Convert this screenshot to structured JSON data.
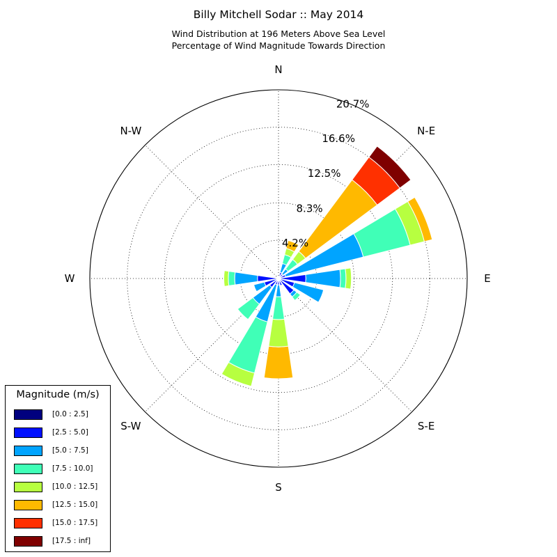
{
  "header": {
    "title": "Billy Mitchell Sodar :: May 2014",
    "subtitle_line1": "Wind Distribution at 196 Meters Above Sea Level",
    "subtitle_line2": "Percentage of Wind Magnitude Towards Direction"
  },
  "chart_data": {
    "type": "polar-bar",
    "title": "Billy Mitchell Sodar :: May 2014",
    "subtitle": [
      "Wind Distribution at 196 Meters Above Sea Level",
      "Percentage of Wind Magnitude Towards Direction"
    ],
    "radial_max": 20.7,
    "radial_ticks": [
      4.2,
      8.3,
      12.5,
      16.6,
      20.7
    ],
    "radial_tick_labels": [
      "4.2%",
      "8.3%",
      "12.5%",
      "16.6%",
      "20.7%"
    ],
    "direction_labels": [
      {
        "angle": 0,
        "label": "N"
      },
      {
        "angle": 45,
        "label": "N-E"
      },
      {
        "angle": 90,
        "label": "E"
      },
      {
        "angle": 135,
        "label": "S-E"
      },
      {
        "angle": 180,
        "label": "S"
      },
      {
        "angle": 225,
        "label": "S-W"
      },
      {
        "angle": 270,
        "label": "W"
      },
      {
        "angle": 315,
        "label": "N-W"
      }
    ],
    "bins": [
      "[0.0 : 2.5]",
      "[2.5 : 5.0]",
      "[5.0 : 7.5]",
      "[7.5 : 10.0]",
      "[10.0 : 12.5]",
      "[12.5 : 15.0]",
      "[15.0 : 17.5]",
      "[17.5 : inf]"
    ],
    "colors": [
      "#00007f",
      "#0010ff",
      "#00a4ff",
      "#40ffb7",
      "#b7ff40",
      "#ffb900",
      "#ff3000",
      "#7f0000"
    ],
    "directions": [
      22.5,
      45,
      67.5,
      90,
      112.5,
      135,
      157.5,
      180,
      202.5,
      225,
      247.5,
      270,
      292.5,
      315,
      337.5,
      360
    ],
    "stacked_cumulative_percent": [
      [
        0.1,
        0.7,
        1.7,
        2.7,
        3.4,
        4.3,
        4.3,
        4.3
      ],
      [
        0.1,
        0.6,
        1.3,
        2.6,
        3.7,
        13.5,
        16.6,
        18.1
      ],
      [
        0.1,
        0.8,
        9.6,
        14.9,
        16.5,
        17.4,
        17.4,
        17.4
      ],
      [
        0.1,
        3.0,
        6.8,
        7.4,
        8.0,
        8.0,
        8.0,
        8.0
      ],
      [
        0.1,
        1.8,
        5.1,
        5.1,
        5.1,
        5.1,
        5.1,
        5.1
      ],
      [
        0.1,
        2.1,
        2.5,
        3.0,
        3.0,
        3.0,
        3.0,
        3.0
      ],
      [
        0.1,
        0.8,
        0.8,
        0.8,
        0.8,
        0.8,
        0.8,
        0.8
      ],
      [
        0.1,
        0.7,
        2.0,
        4.5,
        7.5,
        11.0,
        11.0,
        11.0
      ],
      [
        0.1,
        0.7,
        4.9,
        10.7,
        12.2,
        12.2,
        12.2,
        12.2
      ],
      [
        0.1,
        1.2,
        3.5,
        5.6,
        5.6,
        5.6,
        5.6,
        5.6
      ],
      [
        0.1,
        1.6,
        2.8,
        2.8,
        2.8,
        2.8,
        2.8,
        2.8
      ],
      [
        0.1,
        2.3,
        4.8,
        5.5,
        6.0,
        6.0,
        6.0,
        6.0
      ],
      [
        0.1,
        0.1,
        0.1,
        0.1,
        0.1,
        0.1,
        0.1,
        0.1
      ],
      [
        0.1,
        0.1,
        0.1,
        0.1,
        0.1,
        0.1,
        0.1,
        0.1
      ],
      [
        0.1,
        0.1,
        0.1,
        0.1,
        0.1,
        0.1,
        0.1,
        0.1
      ],
      [
        0.1,
        0.1,
        0.1,
        0.1,
        0.1,
        0.1,
        0.1,
        0.1
      ]
    ],
    "grid": true
  },
  "legend": {
    "title": "Magnitude (m/s)",
    "placement": "bottom-left",
    "items": [
      {
        "label": "[0.0 : 2.5]",
        "color": "#00007f"
      },
      {
        "label": "[2.5 : 5.0]",
        "color": "#0010ff"
      },
      {
        "label": "[5.0 : 7.5]",
        "color": "#00a4ff"
      },
      {
        "label": "[7.5 : 10.0]",
        "color": "#40ffb7"
      },
      {
        "label": "[10.0 : 12.5]",
        "color": "#b7ff40"
      },
      {
        "label": "[12.5 : 15.0]",
        "color": "#ffb900"
      },
      {
        "label": "[15.0 : 17.5]",
        "color": "#ff3000"
      },
      {
        "label": "[17.5 : inf]",
        "color": "#7f0000"
      }
    ]
  }
}
